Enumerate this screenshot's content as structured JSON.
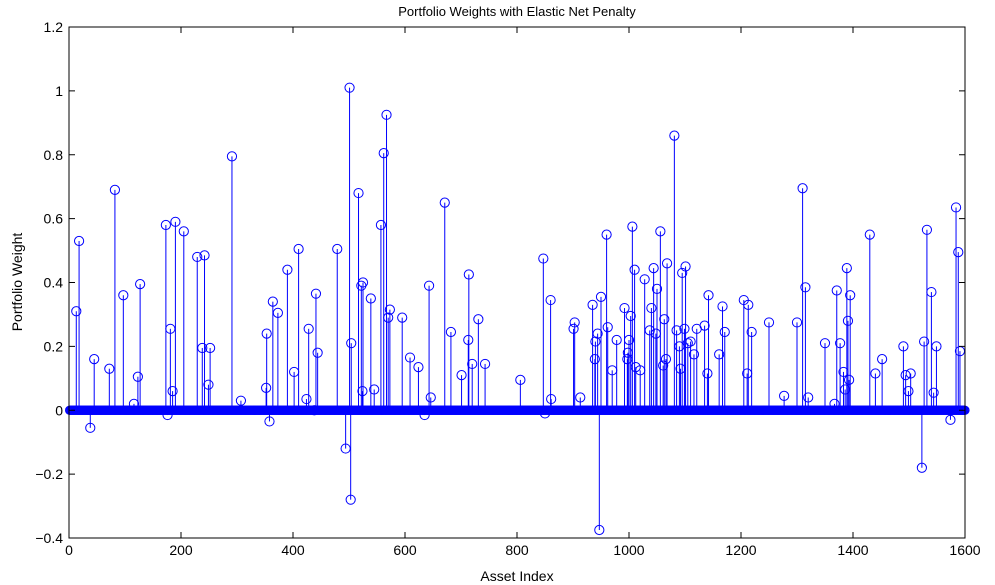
{
  "chart_data": {
    "type": "stem",
    "title": "Portfolio Weights with Elastic Net Penalty",
    "xlabel": "Asset Index",
    "ylabel": "Portfolio Weight",
    "xlim": [
      0,
      1600
    ],
    "ylim": [
      -0.4,
      1.2
    ],
    "xticks": [
      0,
      200,
      400,
      600,
      800,
      1000,
      1200,
      1400,
      1600
    ],
    "yticks": [
      -0.4,
      -0.2,
      0,
      0.2,
      0.4,
      0.6,
      0.8,
      1,
      1.2
    ],
    "ytick_labels": [
      "−0.4",
      "−0.2",
      "0",
      "0.2",
      "0.4",
      "0.6",
      "0.8",
      "1",
      "1.2"
    ],
    "grid": false,
    "series_color": "#0000ff",
    "n_assets": 1600,
    "nonzero_points": [
      [
        13,
        0.31
      ],
      [
        18,
        0.53
      ],
      [
        38,
        -0.055
      ],
      [
        45,
        0.16
      ],
      [
        72,
        0.13
      ],
      [
        82,
        0.69
      ],
      [
        97,
        0.36
      ],
      [
        116,
        0.02
      ],
      [
        123,
        0.105
      ],
      [
        127,
        0.395
      ],
      [
        173,
        0.58
      ],
      [
        176,
        -0.015
      ],
      [
        181,
        0.255
      ],
      [
        185,
        0.06
      ],
      [
        190,
        0.59
      ],
      [
        205,
        0.56
      ],
      [
        229,
        0.48
      ],
      [
        238,
        0.195
      ],
      [
        242,
        0.485
      ],
      [
        249,
        0.08
      ],
      [
        252,
        0.195
      ],
      [
        291,
        0.795
      ],
      [
        307,
        0.03
      ],
      [
        352,
        0.07
      ],
      [
        353,
        0.24
      ],
      [
        358,
        -0.035
      ],
      [
        364,
        0.34
      ],
      [
        373,
        0.305
      ],
      [
        390,
        0.44
      ],
      [
        402,
        0.12
      ],
      [
        410,
        0.505
      ],
      [
        424,
        0.035
      ],
      [
        428,
        0.255
      ],
      [
        438,
        0.0
      ],
      [
        441,
        0.365
      ],
      [
        444,
        0.18
      ],
      [
        479,
        0.505
      ],
      [
        494,
        -0.12
      ],
      [
        501,
        1.01
      ],
      [
        503,
        -0.28
      ],
      [
        504,
        0.21
      ],
      [
        517,
        0.68
      ],
      [
        522,
        0.39
      ],
      [
        524,
        0.06
      ],
      [
        525,
        0.4
      ],
      [
        539,
        0.35
      ],
      [
        545,
        0.065
      ],
      [
        557,
        0.58
      ],
      [
        562,
        0.805
      ],
      [
        567,
        0.925
      ],
      [
        570,
        0.29
      ],
      [
        573,
        0.315
      ],
      [
        595,
        0.29
      ],
      [
        609,
        0.165
      ],
      [
        624,
        0.135
      ],
      [
        635,
        -0.015
      ],
      [
        643,
        0.39
      ],
      [
        646,
        0.04
      ],
      [
        671,
        0.65
      ],
      [
        682,
        0.245
      ],
      [
        701,
        0.11
      ],
      [
        713,
        0.22
      ],
      [
        714,
        0.425
      ],
      [
        720,
        0.145
      ],
      [
        731,
        0.285
      ],
      [
        743,
        0.145
      ],
      [
        806,
        0.095
      ],
      [
        847,
        0.475
      ],
      [
        850,
        -0.01
      ],
      [
        860,
        0.345
      ],
      [
        861,
        0.035
      ],
      [
        901,
        0.255
      ],
      [
        903,
        0.275
      ],
      [
        913,
        0.04
      ],
      [
        935,
        0.33
      ],
      [
        939,
        0.16
      ],
      [
        940,
        0.215
      ],
      [
        944,
        0.24
      ],
      [
        947,
        -0.375
      ],
      [
        950,
        0.355
      ],
      [
        960,
        0.55
      ],
      [
        962,
        0.26
      ],
      [
        970,
        0.125
      ],
      [
        978,
        0.22
      ],
      [
        992,
        0.32
      ],
      [
        997,
        0.16
      ],
      [
        998,
        0.18
      ],
      [
        1000,
        0.22
      ],
      [
        1003,
        0.295
      ],
      [
        1006,
        0.575
      ],
      [
        1010,
        0.44
      ],
      [
        1012,
        0.135
      ],
      [
        1020,
        0.125
      ],
      [
        1028,
        0.41
      ],
      [
        1037,
        0.25
      ],
      [
        1040,
        0.32
      ],
      [
        1044,
        0.445
      ],
      [
        1048,
        0.24
      ],
      [
        1050,
        0.38
      ],
      [
        1056,
        0.56
      ],
      [
        1061,
        0.14
      ],
      [
        1063,
        0.285
      ],
      [
        1066,
        0.16
      ],
      [
        1068,
        0.46
      ],
      [
        1081,
        0.86
      ],
      [
        1085,
        0.25
      ],
      [
        1090,
        0.2
      ],
      [
        1092,
        0.13
      ],
      [
        1095,
        0.43
      ],
      [
        1099,
        0.255
      ],
      [
        1101,
        0.45
      ],
      [
        1105,
        0.21
      ],
      [
        1110,
        0.215
      ],
      [
        1116,
        0.175
      ],
      [
        1121,
        0.255
      ],
      [
        1135,
        0.265
      ],
      [
        1140,
        0.115
      ],
      [
        1142,
        0.36
      ],
      [
        1161,
        0.175
      ],
      [
        1167,
        0.325
      ],
      [
        1171,
        0.245
      ],
      [
        1205,
        0.345
      ],
      [
        1211,
        0.115
      ],
      [
        1213,
        0.33
      ],
      [
        1219,
        0.245
      ],
      [
        1250,
        0.275
      ],
      [
        1277,
        0.045
      ],
      [
        1300,
        0.275
      ],
      [
        1310,
        0.695
      ],
      [
        1315,
        0.385
      ],
      [
        1320,
        0.04
      ],
      [
        1350,
        0.21
      ],
      [
        1367,
        0.02
      ],
      [
        1371,
        0.375
      ],
      [
        1377,
        0.21
      ],
      [
        1383,
        0.12
      ],
      [
        1386,
        0.065
      ],
      [
        1389,
        0.445
      ],
      [
        1391,
        0.28
      ],
      [
        1393,
        0.095
      ],
      [
        1395,
        0.36
      ],
      [
        1430,
        0.55
      ],
      [
        1440,
        0.115
      ],
      [
        1452,
        0.16
      ],
      [
        1490,
        0.2
      ],
      [
        1494,
        0.11
      ],
      [
        1499,
        0.06
      ],
      [
        1503,
        0.115
      ],
      [
        1523,
        -0.18
      ],
      [
        1527,
        0.215
      ],
      [
        1532,
        0.565
      ],
      [
        1540,
        0.37
      ],
      [
        1544,
        0.055
      ],
      [
        1549,
        0.2
      ],
      [
        1574,
        -0.03
      ],
      [
        1584,
        0.635
      ],
      [
        1588,
        0.495
      ],
      [
        1591,
        0.185
      ]
    ]
  }
}
